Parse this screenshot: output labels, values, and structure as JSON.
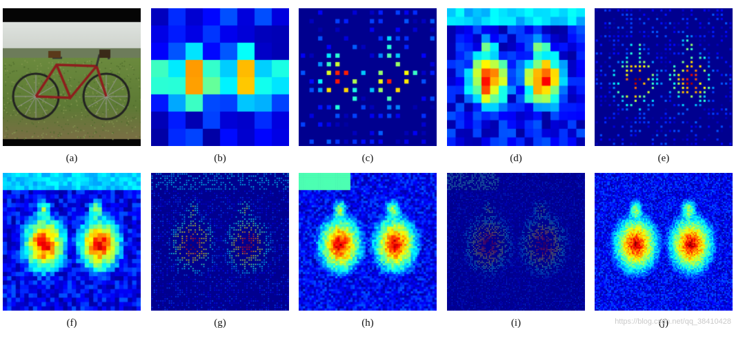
{
  "figure": {
    "panels": [
      {
        "id": "a",
        "caption": "(a)",
        "kind": "photo"
      },
      {
        "id": "b",
        "caption": "(b)",
        "kind": "heatmap",
        "grid": 8,
        "sparse": false
      },
      {
        "id": "c",
        "caption": "(c)",
        "kind": "heatmap",
        "grid": 16,
        "sparse": true
      },
      {
        "id": "d",
        "caption": "(d)",
        "kind": "heatmap",
        "grid": 16,
        "sparse": false
      },
      {
        "id": "e",
        "caption": "(e)",
        "kind": "heatmap",
        "grid": 32,
        "sparse": true
      },
      {
        "id": "f",
        "caption": "(f)",
        "kind": "heatmap",
        "grid": 32,
        "sparse": false
      },
      {
        "id": "g",
        "caption": "(g)",
        "kind": "heatmap",
        "grid": 64,
        "sparse": true
      },
      {
        "id": "h",
        "caption": "(h)",
        "kind": "heatmap",
        "grid": 64,
        "sparse": false
      },
      {
        "id": "i",
        "caption": "(i)",
        "kind": "heatmap",
        "grid": 96,
        "sparse": true
      },
      {
        "id": "j",
        "caption": "(j)",
        "kind": "heatmap",
        "grid": 100,
        "sparse": false
      }
    ],
    "watermark": "https://blog.csdn.net/qq_38410428",
    "colors": {
      "low": "#00008f",
      "high": "#800000"
    }
  }
}
